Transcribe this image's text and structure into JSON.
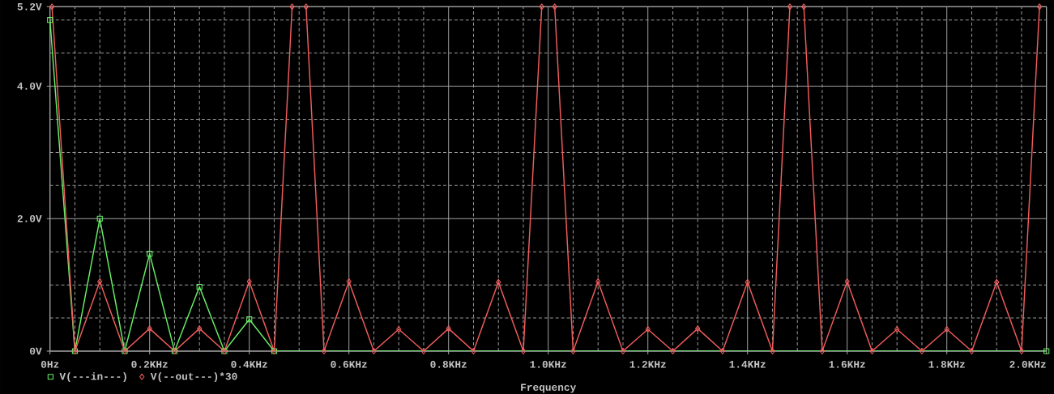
{
  "chart_data": {
    "type": "line",
    "xlabel": "Frequency",
    "xlim": [
      0,
      2.0
    ],
    "ylim": [
      0,
      5.2
    ],
    "xticks": [
      {
        "value": 0,
        "label": "0Hz"
      },
      {
        "value": 0.05,
        "label": null
      },
      {
        "value": 0.1,
        "label": null
      },
      {
        "value": 0.15,
        "label": null
      },
      {
        "value": 0.2,
        "label": "0.2KHz"
      },
      {
        "value": 0.25,
        "label": null
      },
      {
        "value": 0.3,
        "label": null
      },
      {
        "value": 0.35,
        "label": null
      },
      {
        "value": 0.4,
        "label": "0.4KHz"
      },
      {
        "value": 0.45,
        "label": null
      },
      {
        "value": 0.5,
        "label": null
      },
      {
        "value": 0.55,
        "label": null
      },
      {
        "value": 0.6,
        "label": "0.6KHz"
      },
      {
        "value": 0.65,
        "label": null
      },
      {
        "value": 0.7,
        "label": null
      },
      {
        "value": 0.75,
        "label": null
      },
      {
        "value": 0.8,
        "label": "0.8KHz"
      },
      {
        "value": 0.85,
        "label": null
      },
      {
        "value": 0.9,
        "label": null
      },
      {
        "value": 0.95,
        "label": null
      },
      {
        "value": 1.0,
        "label": "1.0KHz"
      },
      {
        "value": 1.05,
        "label": null
      },
      {
        "value": 1.1,
        "label": null
      },
      {
        "value": 1.15,
        "label": null
      },
      {
        "value": 1.2,
        "label": "1.2KHz"
      },
      {
        "value": 1.25,
        "label": null
      },
      {
        "value": 1.3,
        "label": null
      },
      {
        "value": 1.35,
        "label": null
      },
      {
        "value": 1.4,
        "label": "1.4KHz"
      },
      {
        "value": 1.45,
        "label": null
      },
      {
        "value": 1.5,
        "label": null
      },
      {
        "value": 1.55,
        "label": null
      },
      {
        "value": 1.6,
        "label": "1.6KHz"
      },
      {
        "value": 1.65,
        "label": null
      },
      {
        "value": 1.7,
        "label": null
      },
      {
        "value": 1.75,
        "label": null
      },
      {
        "value": 1.8,
        "label": "1.8KHz"
      },
      {
        "value": 1.85,
        "label": null
      },
      {
        "value": 1.9,
        "label": null
      },
      {
        "value": 1.95,
        "label": null
      },
      {
        "value": 2.0,
        "label": "2.0KHz"
      }
    ],
    "yticks": [
      {
        "value": 0,
        "label": "0V"
      },
      {
        "value": 0.5,
        "label": null
      },
      {
        "value": 1,
        "label": null
      },
      {
        "value": 1.5,
        "label": null
      },
      {
        "value": 2,
        "label": "2.0V"
      },
      {
        "value": 2.5,
        "label": null
      },
      {
        "value": 3,
        "label": null
      },
      {
        "value": 3.5,
        "label": null
      },
      {
        "value": 4,
        "label": "4.0V"
      },
      {
        "value": 4.5,
        "label": null
      },
      {
        "value": 5,
        "label": null
      },
      {
        "value": 5.2,
        "label": "5.2V"
      }
    ],
    "grid": true,
    "legend": "bottom left",
    "series": [
      {
        "name": "V(---in---)",
        "color": "#66ee66",
        "marker": "square",
        "x": [
          0,
          0.05,
          0.1,
          0.15,
          0.2,
          0.25,
          0.3,
          0.35,
          0.4,
          0.45,
          2.0
        ],
        "values": [
          5.0,
          0,
          2.0,
          0,
          1.47,
          0,
          0.97,
          0,
          0.48,
          0,
          0
        ]
      },
      {
        "name": "V(--out---)*30",
        "color": "#f05c5c",
        "marker": "diamond",
        "x": [
          0.004,
          0.05,
          0.1,
          0.15,
          0.2,
          0.25,
          0.3,
          0.35,
          0.4,
          0.45,
          0.486,
          0.5,
          0.514,
          0.55,
          0.6,
          0.65,
          0.7,
          0.75,
          0.8,
          0.85,
          0.9,
          0.95,
          0.987,
          1.0,
          1.013,
          1.05,
          1.1,
          1.15,
          1.2,
          1.25,
          1.3,
          1.35,
          1.4,
          1.45,
          1.485,
          1.5,
          1.513,
          1.55,
          1.6,
          1.65,
          1.7,
          1.75,
          1.8,
          1.85,
          1.9,
          1.95,
          1.986
        ],
        "values": [
          5.2,
          0,
          1.05,
          0,
          0.34,
          0,
          0.34,
          0,
          1.05,
          0,
          5.2,
          null,
          5.2,
          0,
          1.05,
          0,
          0.33,
          0,
          0.34,
          0,
          1.04,
          0,
          5.2,
          null,
          5.2,
          0,
          1.05,
          0,
          0.33,
          0,
          0.34,
          0,
          1.04,
          0,
          5.2,
          null,
          5.2,
          0,
          1.05,
          0,
          0.33,
          0,
          0.33,
          0,
          1.04,
          0,
          5.2
        ]
      }
    ]
  }
}
